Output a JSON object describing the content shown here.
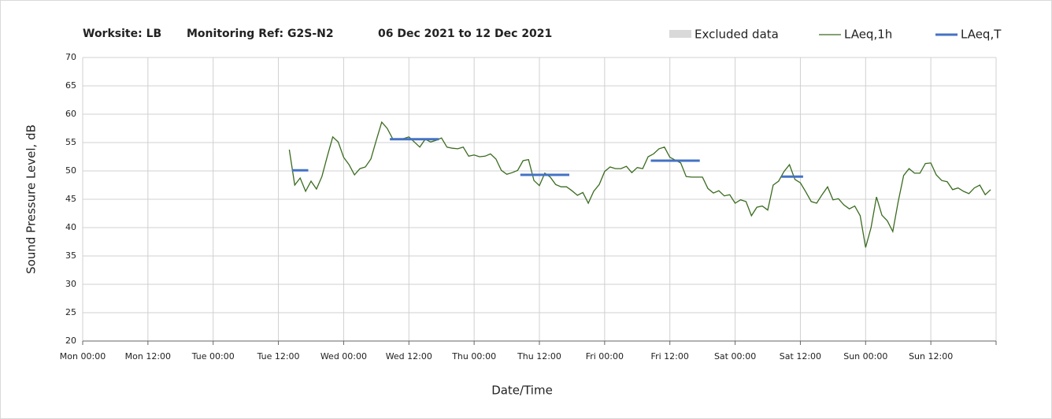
{
  "chart_data": {
    "type": "line",
    "title_parts": [
      "Worksite: LB",
      "Monitoring Ref: G2S-N2",
      "06 Dec 2021 to 12 Dec 2021"
    ],
    "x_label": "Date/Time",
    "y_label": "Sound Pressure Level, dB",
    "xlim": [
      0,
      168
    ],
    "ylim": [
      20,
      70
    ],
    "xticks": [
      {
        "value": 0,
        "label": "Mon 00:00"
      },
      {
        "value": 12,
        "label": "Mon 12:00"
      },
      {
        "value": 24,
        "label": "Tue 00:00"
      },
      {
        "value": 36,
        "label": "Tue 12:00"
      },
      {
        "value": 48,
        "label": "Wed 00:00"
      },
      {
        "value": 60,
        "label": "Wed 12:00"
      },
      {
        "value": 72,
        "label": "Thu 00:00"
      },
      {
        "value": 84,
        "label": "Thu 12:00"
      },
      {
        "value": 96,
        "label": "Fri 00:00"
      },
      {
        "value": 108,
        "label": "Fri 12:00"
      },
      {
        "value": 120,
        "label": "Sat 00:00"
      },
      {
        "value": 132,
        "label": "Sat 12:00"
      },
      {
        "value": 144,
        "label": "Sun 00:00"
      },
      {
        "value": 156,
        "label": "Sun 12:00"
      },
      {
        "value": 168,
        "label": ""
      }
    ],
    "yticks": [
      20,
      25,
      30,
      35,
      40,
      45,
      50,
      55,
      60,
      65,
      70
    ],
    "grid": true,
    "excluded": {
      "name": "Excluded data",
      "color": "#d9d9d9"
    },
    "series": [
      {
        "name": "LAeq,1h",
        "color": "#3a6b1f",
        "x": [
          38,
          39,
          40,
          41,
          42,
          43,
          44,
          45,
          46,
          47,
          48,
          49,
          50,
          51,
          52,
          53,
          54,
          55,
          56,
          57,
          58,
          59,
          60,
          61,
          62,
          63,
          64,
          65,
          66,
          67,
          68,
          69,
          70,
          71,
          72,
          73,
          74,
          75,
          76,
          77,
          78,
          79,
          80,
          81,
          82,
          83,
          84,
          85,
          86,
          87,
          88,
          89,
          90,
          91,
          92,
          93,
          94,
          95,
          96,
          97,
          98,
          99,
          100,
          101,
          102,
          103,
          104,
          105,
          106,
          107,
          108,
          109,
          110,
          111,
          112,
          113,
          114,
          115,
          116,
          117,
          118,
          119,
          120,
          121,
          122,
          123,
          124,
          125,
          126,
          127,
          128,
          129,
          130,
          131,
          132,
          133,
          134,
          135,
          136,
          137,
          138,
          139,
          140,
          141,
          142,
          143,
          144,
          145,
          146,
          147,
          148,
          149,
          150,
          151,
          152,
          153,
          154,
          155,
          156,
          157,
          158,
          159,
          160,
          161,
          162,
          163,
          164,
          165,
          166,
          167
        ],
        "values": [
          53.75,
          47.5,
          48.75,
          46.4,
          48.2,
          46.8,
          49,
          52.6,
          56,
          55.1,
          52.4,
          51.1,
          49.3,
          50.4,
          50.7,
          52.1,
          55.4,
          58.6,
          57.5,
          55.7,
          55.6,
          55.7,
          56,
          55.1,
          54.2,
          55.6,
          55.1,
          55.4,
          55.8,
          54.2,
          54,
          53.9,
          54.2,
          52.6,
          52.8,
          52.5,
          52.6,
          53,
          52.1,
          50.1,
          49.4,
          49.7,
          50.1,
          51.8,
          52,
          48.3,
          47.4,
          49.6,
          48.9,
          47.6,
          47.2,
          47.2,
          46.5,
          45.7,
          46.2,
          44.3,
          46.4,
          47.6,
          49.9,
          50.7,
          50.4,
          50.4,
          50.8,
          49.7,
          50.6,
          50.4,
          52.5,
          53,
          53.9,
          54.2,
          52.4,
          51.9,
          51.4,
          49,
          48.9,
          48.9,
          48.9,
          46.9,
          46.1,
          46.5,
          45.6,
          45.8,
          44.3,
          44.9,
          44.6,
          42.1,
          43.6,
          43.8,
          43.1,
          47.5,
          48.2,
          49.9,
          51.1,
          48.5,
          47.9,
          46.3,
          44.6,
          44.3,
          45.8,
          47.2,
          44.9,
          45.1,
          44,
          43.3,
          43.8,
          42.1,
          36.5,
          40,
          45.4,
          42.2,
          41.2,
          39.3,
          44.6,
          49.2,
          50.4,
          49.6,
          49.6,
          51.3,
          51.4,
          49.3,
          48.3,
          48.1,
          46.7,
          47,
          46.4,
          46,
          47,
          47.5,
          45.8,
          46.7
        ]
      },
      {
        "name": "LAeq,T",
        "color": "#4472c4",
        "x": [
          38.5,
          41.5,
          null,
          56.5,
          65.5,
          null,
          80.5,
          89.5,
          null,
          104.5,
          113.5,
          null,
          128.5,
          132.5
        ],
        "values": [
          50.1,
          50.1,
          null,
          55.6,
          55.6,
          null,
          49.3,
          49.3,
          null,
          51.8,
          51.8,
          null,
          49,
          49
        ]
      }
    ]
  }
}
